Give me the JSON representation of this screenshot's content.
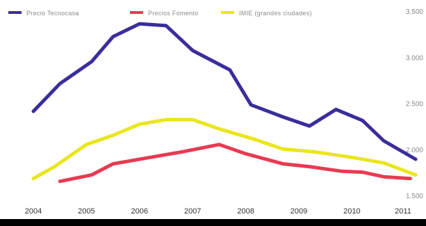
{
  "chart_data": {
    "type": "line",
    "title": "",
    "xlabel": "",
    "ylabel": "",
    "x_ticks": [
      "2004",
      "2005",
      "2006",
      "2007",
      "2008",
      "2009",
      "2010",
      "2011"
    ],
    "y_ticks": [
      "1.500",
      "2.000",
      "2.500",
      "3.000",
      "3.500"
    ],
    "ylim": [
      1500,
      3500
    ],
    "xlim": [
      2004,
      2011.3
    ],
    "grid": false,
    "legend_position": "top-left",
    "series": [
      {
        "name": "Precio Tecnocasa",
        "color": "#3a2d9c",
        "points": [
          [
            2004,
            2420
          ],
          [
            2004.5,
            2720
          ],
          [
            2005.1,
            2960
          ],
          [
            2005.5,
            3230
          ],
          [
            2006,
            3370
          ],
          [
            2006.5,
            3350
          ],
          [
            2007,
            3080
          ],
          [
            2007.7,
            2870
          ],
          [
            2008.1,
            2490
          ],
          [
            2008.7,
            2360
          ],
          [
            2009.2,
            2260
          ],
          [
            2009.7,
            2440
          ],
          [
            2010.2,
            2320
          ],
          [
            2010.6,
            2100
          ],
          [
            2011.2,
            1900
          ]
        ]
      },
      {
        "name": "Precios Fomento",
        "color": "#e83a52",
        "points": [
          [
            2004.5,
            1660
          ],
          [
            2005.1,
            1730
          ],
          [
            2005.5,
            1850
          ],
          [
            2006.2,
            1920
          ],
          [
            2006.8,
            1980
          ],
          [
            2007.5,
            2060
          ],
          [
            2008,
            1960
          ],
          [
            2008.7,
            1850
          ],
          [
            2009.2,
            1820
          ],
          [
            2009.8,
            1770
          ],
          [
            2010.2,
            1760
          ],
          [
            2010.6,
            1710
          ],
          [
            2011.1,
            1690
          ]
        ]
      },
      {
        "name": "IMIE (grandes ciudades)",
        "color": "#e9e61e",
        "points": [
          [
            2004,
            1690
          ],
          [
            2004.4,
            1820
          ],
          [
            2005,
            2060
          ],
          [
            2005.5,
            2160
          ],
          [
            2006,
            2280
          ],
          [
            2006.5,
            2330
          ],
          [
            2007,
            2330
          ],
          [
            2007.5,
            2230
          ],
          [
            2008.2,
            2110
          ],
          [
            2008.7,
            2010
          ],
          [
            2009.3,
            1980
          ],
          [
            2010,
            1920
          ],
          [
            2010.6,
            1860
          ],
          [
            2011.2,
            1730
          ]
        ]
      }
    ]
  }
}
